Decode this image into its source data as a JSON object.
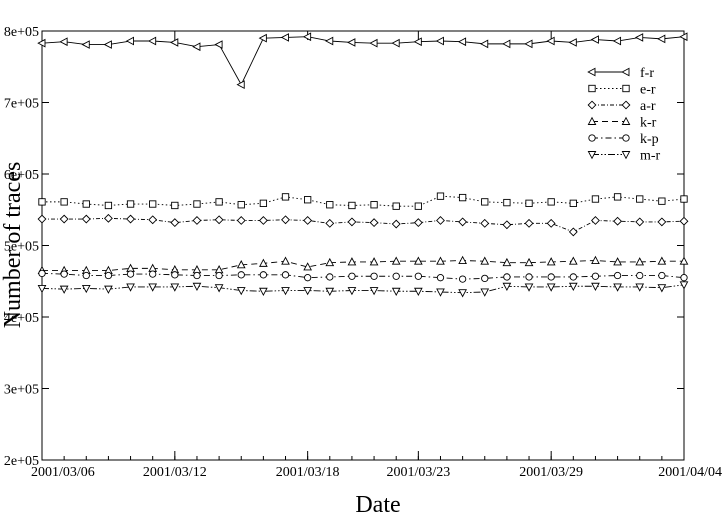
{
  "chart_data": {
    "type": "line",
    "title": "",
    "xlabel": "Date",
    "ylabel": "Number of traces",
    "xlim": [
      "2001-03-06",
      "2001-04-04"
    ],
    "ylim": [
      200000,
      800000
    ],
    "grid": false,
    "legend_position": "top-right",
    "x_ticks": [
      "2001/03/06",
      "2001/03/12",
      "2001/03/18",
      "2001/03/23",
      "2001/03/29",
      "2001/04/04"
    ],
    "y_ticks": [
      {
        "value": 200000,
        "label": "2e+05"
      },
      {
        "value": 300000,
        "label": "3e+05"
      },
      {
        "value": 400000,
        "label": "4e+05"
      },
      {
        "value": 500000,
        "label": "5e+05"
      },
      {
        "value": 600000,
        "label": "6e+05"
      },
      {
        "value": 700000,
        "label": "7e+05"
      },
      {
        "value": 800000,
        "label": "8e+05"
      }
    ],
    "x": [
      "2001-03-06",
      "2001-03-07",
      "2001-03-08",
      "2001-03-09",
      "2001-03-10",
      "2001-03-11",
      "2001-03-12",
      "2001-03-13",
      "2001-03-14",
      "2001-03-15",
      "2001-03-16",
      "2001-03-17",
      "2001-03-18",
      "2001-03-19",
      "2001-03-20",
      "2001-03-21",
      "2001-03-22",
      "2001-03-23",
      "2001-03-24",
      "2001-03-25",
      "2001-03-26",
      "2001-03-27",
      "2001-03-28",
      "2001-03-29",
      "2001-03-30",
      "2001-03-31",
      "2001-04-01",
      "2001-04-02",
      "2001-04-03",
      "2001-04-04"
    ],
    "series": [
      {
        "name": "f-r",
        "marker": "triangle-left",
        "dash": "solid",
        "values": [
          783000,
          785000,
          781000,
          781000,
          786000,
          786000,
          784000,
          778000,
          781000,
          725000,
          790000,
          791000,
          792000,
          786000,
          784000,
          783000,
          783000,
          785000,
          786000,
          785000,
          782000,
          782000,
          782000,
          786000,
          784000,
          788000,
          786000,
          791000,
          789000,
          792000
        ]
      },
      {
        "name": "e-r",
        "marker": "square",
        "dash": "dotted",
        "values": [
          561000,
          561000,
          558000,
          556000,
          558000,
          558000,
          556000,
          558000,
          561000,
          557000,
          559000,
          568000,
          564000,
          557000,
          556000,
          557000,
          555000,
          555000,
          569000,
          567000,
          561000,
          560000,
          559000,
          561000,
          559000,
          565000,
          568000,
          565000,
          562000,
          565000
        ]
      },
      {
        "name": "a-r",
        "marker": "diamond",
        "dash": "dashed-dotted",
        "values": [
          537000,
          537000,
          537000,
          538000,
          537000,
          536000,
          532000,
          535000,
          536000,
          535000,
          535000,
          536000,
          535000,
          531000,
          533000,
          532000,
          530000,
          532000,
          535000,
          533000,
          531000,
          529000,
          531000,
          531000,
          519000,
          535000,
          534000,
          533000,
          533000,
          534000
        ]
      },
      {
        "name": "k-r",
        "marker": "triangle-up",
        "dash": "dashed",
        "values": [
          465000,
          465000,
          465000,
          465000,
          468000,
          468000,
          466000,
          466000,
          466000,
          473000,
          475000,
          478000,
          470000,
          476000,
          477000,
          477000,
          478000,
          478000,
          478000,
          479000,
          478000,
          476000,
          476000,
          477000,
          478000,
          479000,
          477000,
          477000,
          478000,
          478000
        ]
      },
      {
        "name": "k-p",
        "marker": "circle",
        "dash": "dash-dot",
        "values": [
          461000,
          460000,
          458000,
          458000,
          460000,
          460000,
          459000,
          458000,
          458000,
          459000,
          459000,
          459000,
          455000,
          456000,
          457000,
          457000,
          457000,
          457000,
          455000,
          453000,
          454000,
          456000,
          456000,
          456000,
          456000,
          457000,
          458000,
          458000,
          458000,
          455000
        ]
      },
      {
        "name": "m-r",
        "marker": "triangle-down",
        "dash": "dash-dot-dot",
        "values": [
          440000,
          439000,
          440000,
          439000,
          442000,
          442000,
          442000,
          443000,
          441000,
          437000,
          436000,
          437000,
          437000,
          436000,
          437000,
          437000,
          436000,
          436000,
          435000,
          434000,
          435000,
          443000,
          442000,
          442000,
          443000,
          443000,
          442000,
          442000,
          441000,
          445000
        ]
      }
    ]
  }
}
